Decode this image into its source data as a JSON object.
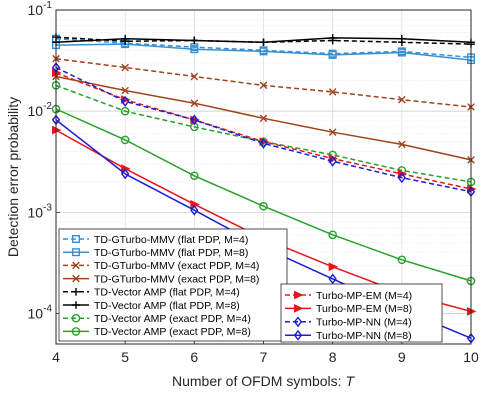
{
  "chart_data": {
    "type": "line",
    "xlabel": "Number of OFDM symbols:",
    "xlabel_var": "T",
    "ylabel": "Detection error probability",
    "xlim": [
      4,
      10
    ],
    "ylim": [
      5e-05,
      0.1
    ],
    "yscale": "log",
    "grid": true,
    "x_ticks": [
      4,
      5,
      6,
      7,
      8,
      9,
      10
    ],
    "y_ticks": [
      {
        "value": 0.0001,
        "base": "10",
        "exp": "-4"
      },
      {
        "value": 0.001,
        "base": "10",
        "exp": "-3"
      },
      {
        "value": 0.01,
        "base": "10",
        "exp": "-2"
      },
      {
        "value": 0.1,
        "base": "10",
        "exp": "-1"
      }
    ],
    "x": [
      4,
      5,
      6,
      7,
      8,
      9,
      10
    ],
    "legend_left": [
      "TD-GTurbo-MMV (flat PDP, M=4)",
      "TD-GTurbo-MMV (flat PDP, M=8)",
      "TD-GTurbo-MMV (exact PDP, M=4)",
      "TD-GTurbo-MMV (exact PDP, M=8)",
      "TD-Vector AMP (flat PDP, M=4)",
      "TD-Vector AMP (flat PDP, M=8)",
      "TD-Vector AMP (exact PDP, M=4)",
      "TD-Vector AMP (exact PDP, M=8)"
    ],
    "legend_right": [
      "Turbo-MP-EM (M=4)",
      "Turbo-MP-EM (M=8)",
      "Turbo-MP-NN (M=4)",
      "Turbo-MP-NN (M=8)"
    ],
    "series": [
      {
        "name": "TD-GTurbo-MMV (flat PDP, M=4)",
        "color": "#3a8fd0",
        "dash": "dashed",
        "marker": "square",
        "values": [
          0.052,
          0.047,
          0.043,
          0.04,
          0.037,
          0.039,
          0.034
        ]
      },
      {
        "name": "TD-GTurbo-MMV (flat PDP, M=8)",
        "color": "#3a8fd0",
        "dash": "solid",
        "marker": "square",
        "values": [
          0.045,
          0.046,
          0.041,
          0.039,
          0.036,
          0.038,
          0.032
        ]
      },
      {
        "name": "TD-GTurbo-MMV (exact PDP, M=4)",
        "color": "#a0421a",
        "dash": "dashed",
        "marker": "x",
        "values": [
          0.033,
          0.027,
          0.022,
          0.018,
          0.0155,
          0.013,
          0.011
        ]
      },
      {
        "name": "TD-GTurbo-MMV (exact PDP, M=8)",
        "color": "#a0421a",
        "dash": "solid",
        "marker": "x",
        "values": [
          0.022,
          0.016,
          0.012,
          0.0085,
          0.0062,
          0.0047,
          0.0033
        ]
      },
      {
        "name": "TD-Vector AMP (flat PDP, M=4)",
        "color": "#000000",
        "dash": "dashed",
        "marker": "plus",
        "values": [
          0.054,
          0.049,
          0.05,
          0.048,
          0.05,
          0.048,
          0.046
        ]
      },
      {
        "name": "TD-Vector AMP (flat PDP, M=8)",
        "color": "#000000",
        "dash": "solid",
        "marker": "plus",
        "values": [
          0.048,
          0.052,
          0.05,
          0.048,
          0.053,
          0.052,
          0.048
        ]
      },
      {
        "name": "TD-Vector AMP (exact PDP, M=4)",
        "color": "#27a12a",
        "dash": "dashed",
        "marker": "circle",
        "values": [
          0.018,
          0.01,
          0.007,
          0.005,
          0.0037,
          0.0026,
          0.002
        ]
      },
      {
        "name": "TD-Vector AMP (exact PDP, M=8)",
        "color": "#27a12a",
        "dash": "solid",
        "marker": "circle",
        "values": [
          0.0105,
          0.0052,
          0.0023,
          0.00115,
          0.0006,
          0.00034,
          0.00021
        ]
      },
      {
        "name": "Turbo-MP-EM (M=4)",
        "color": "#e8161c",
        "dash": "dashed",
        "marker": "triangle-right",
        "values": [
          0.024,
          0.013,
          0.0082,
          0.005,
          0.0034,
          0.0024,
          0.0017
        ]
      },
      {
        "name": "Turbo-MP-EM (M=8)",
        "color": "#e8161c",
        "dash": "solid",
        "marker": "triangle-right",
        "values": [
          0.0065,
          0.0027,
          0.0012,
          0.00055,
          0.00029,
          0.00016,
          0.000105
        ]
      },
      {
        "name": "Turbo-MP-NN (M=4)",
        "color": "#1c1cd6",
        "dash": "dashed",
        "marker": "diamond",
        "values": [
          0.027,
          0.0125,
          0.0082,
          0.0048,
          0.0032,
          0.0022,
          0.0016
        ]
      },
      {
        "name": "Turbo-MP-NN (M=8)",
        "color": "#1c1cd6",
        "dash": "solid",
        "marker": "diamond",
        "values": [
          0.0082,
          0.0024,
          0.00105,
          0.00045,
          0.00022,
          0.00011,
          5.7e-05
        ]
      }
    ]
  }
}
